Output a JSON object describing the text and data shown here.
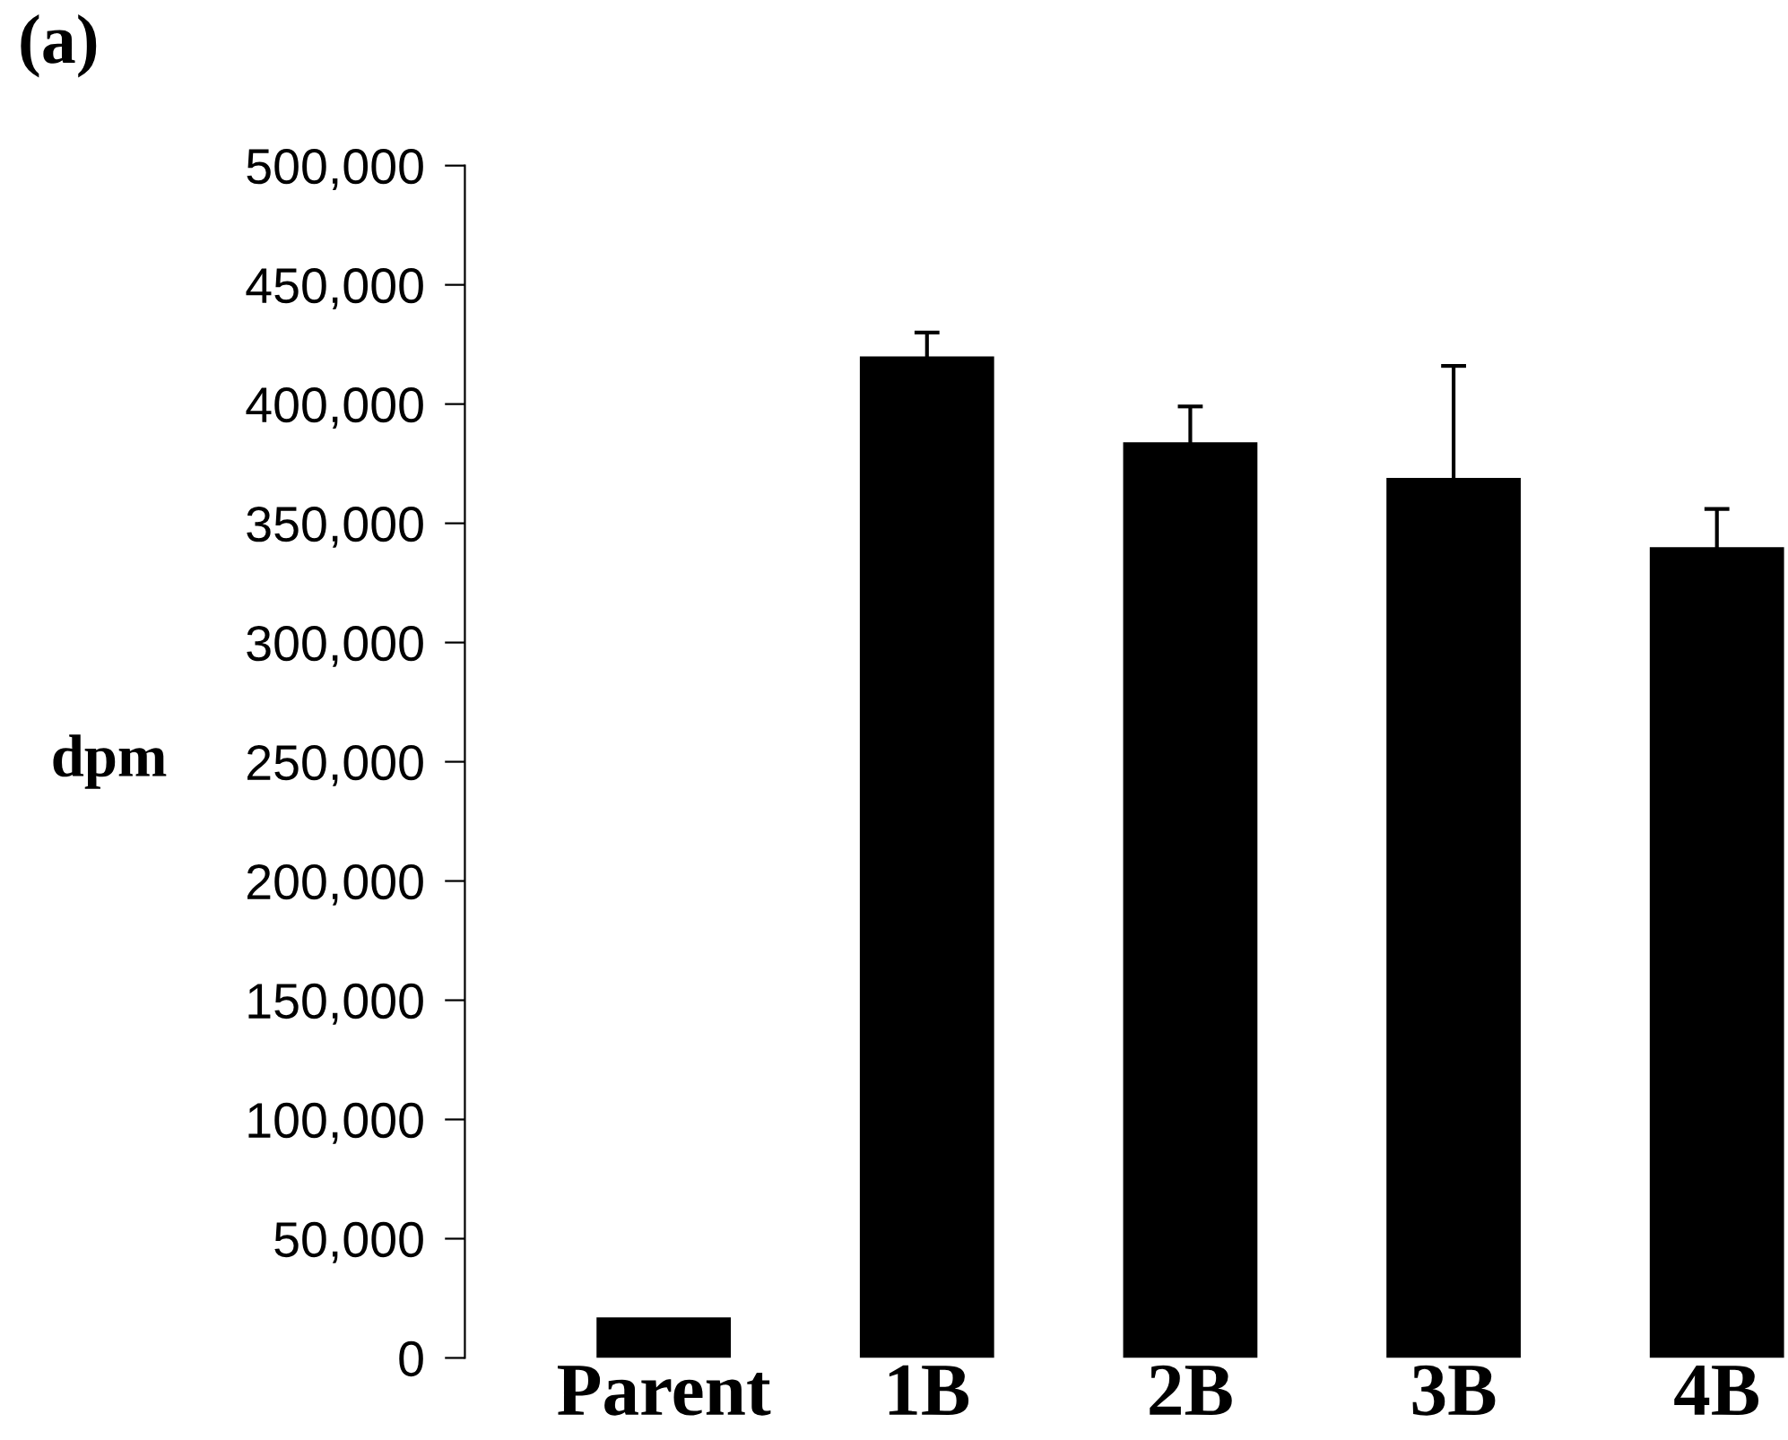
{
  "chart_data": {
    "type": "bar",
    "title": "(a)",
    "ylabel": "dpm",
    "categories": [
      "Parent",
      "1B",
      "2B",
      "3B",
      "4B"
    ],
    "values": [
      17000,
      420000,
      384000,
      369000,
      340000
    ],
    "errors": [
      null,
      10000,
      15000,
      47000,
      16000
    ],
    "color": "#000000",
    "ylim": [
      0,
      500000
    ],
    "yticks": [
      0,
      {
        "value": 50000,
        "label": "50,000"
      },
      {
        "value": 100000,
        "label": "100,000"
      },
      {
        "value": 150000,
        "label": "150,000"
      },
      {
        "value": 200000,
        "label": "200,000"
      },
      {
        "value": 250000,
        "label": "250,000"
      },
      {
        "value": 300000,
        "label": "300,000"
      },
      {
        "value": 350000,
        "label": "350,000"
      },
      {
        "value": 400000,
        "label": "400,000"
      },
      {
        "value": 450000,
        "label": "450,000"
      },
      {
        "value": 500000,
        "label": "500,000"
      }
    ],
    "grid": false,
    "legend": false
  }
}
